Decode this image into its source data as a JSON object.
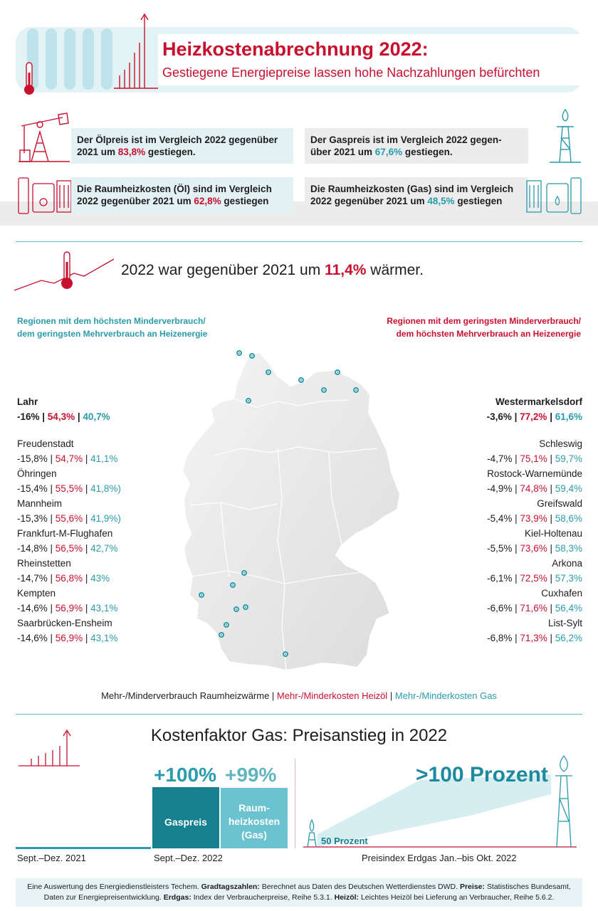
{
  "header": {
    "title": "Heizkostenabrechnung 2022:",
    "subtitle": "Gestiegene Energiepreise lassen hohe Nachzahlungen befürchten"
  },
  "facts": {
    "oil_price": {
      "line1": "Der Ölpreis ist im Vergleich 2022 gegenüber",
      "line2_pre": "2021 um ",
      "value": "83,8%",
      "line2_post": " gestiegen."
    },
    "gas_price": {
      "line1": "Der Gaspreis ist im Vergleich 2022 gegen-",
      "line2_pre": "über 2021 um ",
      "value": "67,6%",
      "line2_post": " gestiegen."
    },
    "oil_heating": {
      "line1": "Die Raumheizkosten (Öl) sind im Vergleich",
      "line2_pre": "2022 gegenüber 2021 um ",
      "value": "62,8%",
      "line2_post": " gestiegen"
    },
    "gas_heating": {
      "line1": "Die Raumheizkosten (Gas) sind im Vergleich",
      "line2_pre": "2022 gegenüber 2021 um ",
      "value": "48,5%",
      "line2_post": " gestiegen"
    }
  },
  "warmer": {
    "pre": "2022 war gegenüber 2021 um ",
    "value": "11,4%",
    "post": " wärmer."
  },
  "regions": {
    "left_heading_1": "Regionen mit dem höchsten Minderverbrauch/",
    "left_heading_2": "dem geringsten Mehrverbrauch an Heizenergie",
    "right_heading_1": "Regionen mit dem geringsten Minderverbrauch/",
    "right_heading_2": "dem höchsten Mehrverbrauch an Heizenergie"
  },
  "stations_left": [
    {
      "name": "Lahr",
      "v1": "-16%",
      "v2": "54,3%",
      "v3": "40,7%"
    },
    {
      "name": "Freudenstadt",
      "v1": "-15,8%",
      "v2": "54,7%",
      "v3": "41,1%"
    },
    {
      "name": "Öhringen",
      "v1": "-15,4%",
      "v2": "55,5%",
      "v3": "41,8%)"
    },
    {
      "name": "Mannheim",
      "v1": "-15,3%",
      "v2": "55,6%",
      "v3": "41,9%)"
    },
    {
      "name": "Frankfurt-M-Flughafen",
      "v1": "-14,8%",
      "v2": "56,5%",
      "v3": "42,7%"
    },
    {
      "name": "Rheinstetten",
      "v1": "-14,7%",
      "v2": "56,8%",
      "v3": "43%"
    },
    {
      "name": "Kempten",
      "v1": "-14,6%",
      "v2": "56,9%",
      "v3": "43,1%"
    },
    {
      "name": "Saarbrücken-Ensheim",
      "v1": "-14,6%",
      "v2": "56,9%",
      "v3": "43,1%"
    }
  ],
  "stations_right": [
    {
      "name": "Westermarkelsdorf",
      "v1": "-3,6%",
      "v2": "77,2%",
      "v3": "61,6%"
    },
    {
      "name": "Schleswig",
      "v1": "-4,7%",
      "v2": "75,1%",
      "v3": "59,7%"
    },
    {
      "name": "Rostock-Warnemünde",
      "v1": "-4,9%",
      "v2": "74,8%",
      "v3": "59,4%"
    },
    {
      "name": "Greifswald",
      "v1": "-5,4%",
      "v2": "73,9%",
      "v3": "58,6%"
    },
    {
      "name": "Kiel-Holtenau",
      "v1": "-5,5%",
      "v2": "73,6%",
      "v3": "58,3%"
    },
    {
      "name": "Arkona",
      "v1": "-6,1%",
      "v2": "72,5%",
      "v3": "57,3%"
    },
    {
      "name": "Cuxhafen",
      "v1": "-6,6%",
      "v2": "71,6%",
      "v3": "56,4%"
    },
    {
      "name": "List-Sylt",
      "v1": "-6,8%",
      "v2": "71,3%",
      "v3": "56,2%"
    }
  ],
  "map_legend": {
    "item1": "Mehr-/Minderverbrauch Raumheizwärme",
    "item2": "Mehr-/Minderkosten Heizöl",
    "item3": "Mehr-/Minderkosten Gas",
    "separator": " | "
  },
  "kosten": {
    "title": "Kostenfaktor Gas: Preisanstieg in 2022",
    "gas_pct": "+100%",
    "heating_pct": "+99%",
    "bar_gas_label": "Gaspreis",
    "bar_heating_label_1": "Raum-",
    "bar_heating_label_2": "heizkosten",
    "bar_heating_label_3": "(Gas)",
    "label_2021": "Sept.–Dez. 2021",
    "label_2022": "Sept.–Dez. 2022",
    "index_label": "Preisindex Erdgas Jan.–bis Okt. 2022",
    "big_label": ">100 Prozent",
    "small_label": "50 Prozent"
  },
  "chart_data": {
    "type": "bar",
    "categories": [
      "Sept.–Dez. 2021",
      "Sept.–Dez. 2022"
    ],
    "series": [
      {
        "name": "Gaspreis",
        "values": [
          0,
          100
        ]
      },
      {
        "name": "Raumheizkosten (Gas)",
        "values": [
          0,
          99
        ]
      }
    ]
  },
  "footer": {
    "p1": "Eine Auswertung des Energiedienstleisters Techem. ",
    "b1": "Gradtagszahlen:",
    "p2": " Berechnet aus Daten des Deutschen Wetterdienstes DWD. ",
    "b2": "Preise:",
    "p3": " Statistisches Bundesamt, Daten zur Energiepreisentwicklung. ",
    "b3": "Erdgas:",
    "p4": " Index der Verbraucherpreise, Reihe 5.3.1. ",
    "b4": "Heizöl:",
    "p5": " Leichtes Heizöl bei Lieferung an Verbraucher, Reihe 5.6.2."
  },
  "colors": {
    "red": "#c8102e",
    "teal": "#2a9bab",
    "light_teal": "#e3f2f5"
  },
  "icons": [
    "radiator-icon",
    "thermometer-icon",
    "oil-pump-icon",
    "gas-tower-icon",
    "heater-icon",
    "rising-arrow-icon",
    "map-pin-icon"
  ]
}
